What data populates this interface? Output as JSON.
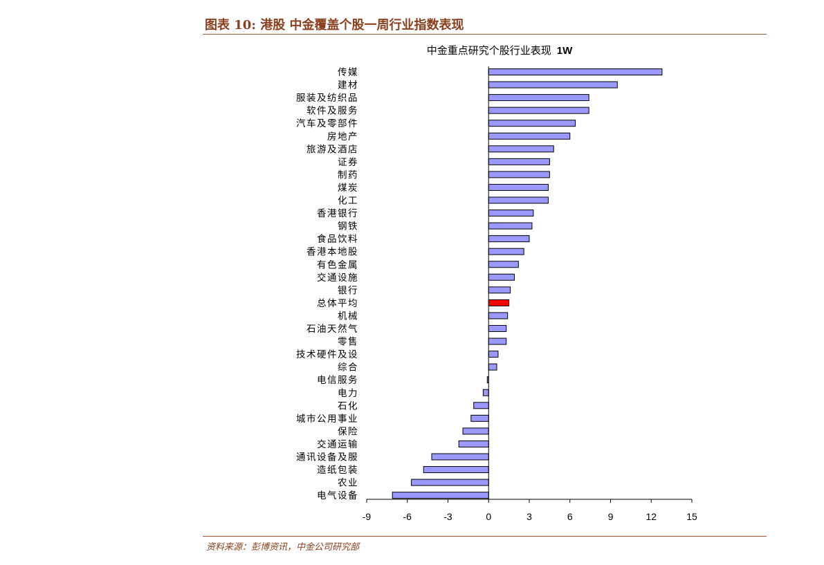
{
  "figure_title": "图表 10:  港股  中金覆盖个股一周行业指数表现",
  "source": "资料来源：彭博资讯，中金公司研究部",
  "colors": {
    "bar": "#9999ff",
    "highlight": "#ff0000",
    "outline": "#000000",
    "accent": "#8a3e1c"
  },
  "chart_data": {
    "type": "bar",
    "orientation": "horizontal",
    "title": "中金重点研究个股行业表现",
    "title_suffix": "1W",
    "xlabel": "",
    "ylabel": "",
    "xlim": [
      -9,
      15
    ],
    "xticks": [
      -9,
      -6,
      -3,
      0,
      3,
      6,
      9,
      12,
      15
    ],
    "highlight_category": "总体平均",
    "categories": [
      "传媒",
      "建材",
      "服装及纺织品",
      "软件及服务",
      "汽车及零部件",
      "房地产",
      "旅游及酒店",
      "证券",
      "制药",
      "煤炭",
      "化工",
      "香港银行",
      "钢铁",
      "食品饮料",
      "香港本地股",
      "有色金属",
      "交通设施",
      "银行",
      "总体平均",
      "机械",
      "石油天然气",
      "零售",
      "技术硬件及设",
      "综合",
      "电信服务",
      "电力",
      "石化",
      "城市公用事业",
      "保险",
      "交通运输",
      "通讯设备及服",
      "造纸包装",
      "农业",
      "电气设备"
    ],
    "values": [
      12.8,
      9.5,
      7.4,
      7.4,
      6.4,
      6.0,
      4.8,
      4.5,
      4.5,
      4.4,
      4.4,
      3.3,
      3.2,
      3.0,
      2.6,
      2.2,
      1.9,
      1.6,
      1.5,
      1.4,
      1.3,
      1.3,
      0.7,
      0.6,
      -0.1,
      -0.4,
      -1.1,
      -1.3,
      -1.9,
      -2.2,
      -4.2,
      -4.8,
      -5.7,
      -7.1
    ]
  }
}
